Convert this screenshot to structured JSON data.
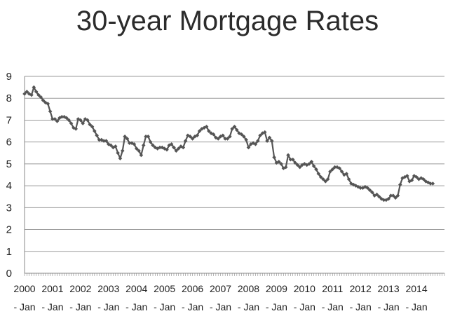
{
  "chart_data": {
    "type": "line",
    "title": "30-year Mortgage Rates",
    "xlabel": "",
    "ylabel": "",
    "ylim": [
      0,
      9
    ],
    "y_ticks": [
      "0",
      "1",
      "2",
      "3",
      "4",
      "5",
      "6",
      "7",
      "8",
      "9"
    ],
    "x_ticks": [
      {
        "year": "2000",
        "month": "- Jan"
      },
      {
        "year": "2001",
        "month": "- Jan"
      },
      {
        "year": "2002",
        "month": "- Jan"
      },
      {
        "year": "2003",
        "month": "- Jan"
      },
      {
        "year": "2004",
        "month": "- Jan"
      },
      {
        "year": "2005",
        "month": "- Jan"
      },
      {
        "year": "2006",
        "month": "- Jan"
      },
      {
        "year": "2007",
        "month": "- Jan"
      },
      {
        "year": "2008",
        "month": "- Jan"
      },
      {
        "year": "2009",
        "month": "- Jan"
      },
      {
        "year": "2010",
        "month": "- Jan"
      },
      {
        "year": "2011",
        "month": "- Jan"
      },
      {
        "year": "2012",
        "month": "- Jan"
      },
      {
        "year": "2013",
        "month": "- Jan"
      },
      {
        "year": "2014",
        "month": "- Jan"
      }
    ],
    "grid": true,
    "series_color": "#555555",
    "x": [
      "2000-01",
      "2000-02",
      "2000-03",
      "2000-04",
      "2000-05",
      "2000-06",
      "2000-07",
      "2000-08",
      "2000-09",
      "2000-10",
      "2000-11",
      "2000-12",
      "2001-01",
      "2001-02",
      "2001-03",
      "2001-04",
      "2001-05",
      "2001-06",
      "2001-07",
      "2001-08",
      "2001-09",
      "2001-10",
      "2001-11",
      "2001-12",
      "2002-01",
      "2002-02",
      "2002-03",
      "2002-04",
      "2002-05",
      "2002-06",
      "2002-07",
      "2002-08",
      "2002-09",
      "2002-10",
      "2002-11",
      "2002-12",
      "2003-01",
      "2003-02",
      "2003-03",
      "2003-04",
      "2003-05",
      "2003-06",
      "2003-07",
      "2003-08",
      "2003-09",
      "2003-10",
      "2003-11",
      "2003-12",
      "2004-01",
      "2004-02",
      "2004-03",
      "2004-04",
      "2004-05",
      "2004-06",
      "2004-07",
      "2004-08",
      "2004-09",
      "2004-10",
      "2004-11",
      "2004-12",
      "2005-01",
      "2005-02",
      "2005-03",
      "2005-04",
      "2005-05",
      "2005-06",
      "2005-07",
      "2005-08",
      "2005-09",
      "2005-10",
      "2005-11",
      "2005-12",
      "2006-01",
      "2006-02",
      "2006-03",
      "2006-04",
      "2006-05",
      "2006-06",
      "2006-07",
      "2006-08",
      "2006-09",
      "2006-10",
      "2006-11",
      "2006-12",
      "2007-01",
      "2007-02",
      "2007-03",
      "2007-04",
      "2007-05",
      "2007-06",
      "2007-07",
      "2007-08",
      "2007-09",
      "2007-10",
      "2007-11",
      "2007-12",
      "2008-01",
      "2008-02",
      "2008-03",
      "2008-04",
      "2008-05",
      "2008-06",
      "2008-07",
      "2008-08",
      "2008-09",
      "2008-10",
      "2008-11",
      "2008-12",
      "2009-01",
      "2009-02",
      "2009-03",
      "2009-04",
      "2009-05",
      "2009-06",
      "2009-07",
      "2009-08",
      "2009-09",
      "2009-10",
      "2009-11",
      "2009-12",
      "2010-01",
      "2010-02",
      "2010-03",
      "2010-04",
      "2010-05",
      "2010-06",
      "2010-07",
      "2010-08",
      "2010-09",
      "2010-10",
      "2010-11",
      "2010-12",
      "2011-01",
      "2011-02",
      "2011-03",
      "2011-04",
      "2011-05",
      "2011-06",
      "2011-07",
      "2011-08",
      "2011-09",
      "2011-10",
      "2011-11",
      "2011-12",
      "2012-01",
      "2012-02",
      "2012-03",
      "2012-04",
      "2012-05",
      "2012-06",
      "2012-07",
      "2012-08",
      "2012-09",
      "2012-10",
      "2012-11",
      "2012-12",
      "2013-01",
      "2013-02",
      "2013-03",
      "2013-04",
      "2013-05",
      "2013-06",
      "2013-07",
      "2013-08",
      "2013-09",
      "2013-10",
      "2013-11",
      "2013-12",
      "2014-01",
      "2014-02",
      "2014-03",
      "2014-04",
      "2014-05",
      "2014-06",
      "2014-07",
      "2014-08"
    ],
    "values": [
      8.2,
      8.3,
      8.2,
      8.15,
      8.5,
      8.3,
      8.15,
      8.05,
      7.9,
      7.8,
      7.75,
      7.4,
      7.05,
      7.05,
      6.95,
      7.1,
      7.15,
      7.15,
      7.1,
      7.0,
      6.85,
      6.65,
      6.6,
      7.05,
      7.0,
      6.85,
      7.05,
      7.0,
      6.8,
      6.7,
      6.5,
      6.3,
      6.1,
      6.1,
      6.05,
      6.05,
      5.9,
      5.85,
      5.75,
      5.8,
      5.5,
      5.25,
      5.6,
      6.25,
      6.15,
      5.95,
      5.95,
      5.9,
      5.7,
      5.6,
      5.4,
      5.85,
      6.25,
      6.25,
      6.0,
      5.85,
      5.75,
      5.7,
      5.75,
      5.75,
      5.7,
      5.65,
      5.85,
      5.9,
      5.75,
      5.6,
      5.7,
      5.8,
      5.75,
      6.05,
      6.3,
      6.25,
      6.15,
      6.25,
      6.3,
      6.5,
      6.6,
      6.65,
      6.7,
      6.5,
      6.4,
      6.35,
      6.2,
      6.15,
      6.25,
      6.3,
      6.15,
      6.15,
      6.25,
      6.6,
      6.7,
      6.55,
      6.4,
      6.35,
      6.25,
      6.1,
      5.75,
      5.9,
      5.95,
      5.9,
      6.05,
      6.3,
      6.4,
      6.45,
      6.05,
      6.2,
      6.05,
      5.3,
      5.05,
      5.1,
      5.0,
      4.8,
      4.85,
      5.4,
      5.2,
      5.2,
      5.05,
      4.95,
      4.85,
      4.95,
      5.0,
      4.95,
      5.0,
      5.1,
      4.9,
      4.75,
      4.55,
      4.4,
      4.3,
      4.2,
      4.3,
      4.65,
      4.75,
      4.85,
      4.85,
      4.8,
      4.65,
      4.5,
      4.55,
      4.3,
      4.1,
      4.05,
      4.0,
      3.95,
      3.9,
      3.9,
      3.95,
      3.9,
      3.8,
      3.7,
      3.55,
      3.6,
      3.5,
      3.4,
      3.35,
      3.35,
      3.4,
      3.55,
      3.55,
      3.45,
      3.55,
      4.05,
      4.35,
      4.4,
      4.45,
      4.2,
      4.25,
      4.45,
      4.4,
      4.3,
      4.35,
      4.3,
      4.2,
      4.15,
      4.1,
      4.1
    ]
  }
}
